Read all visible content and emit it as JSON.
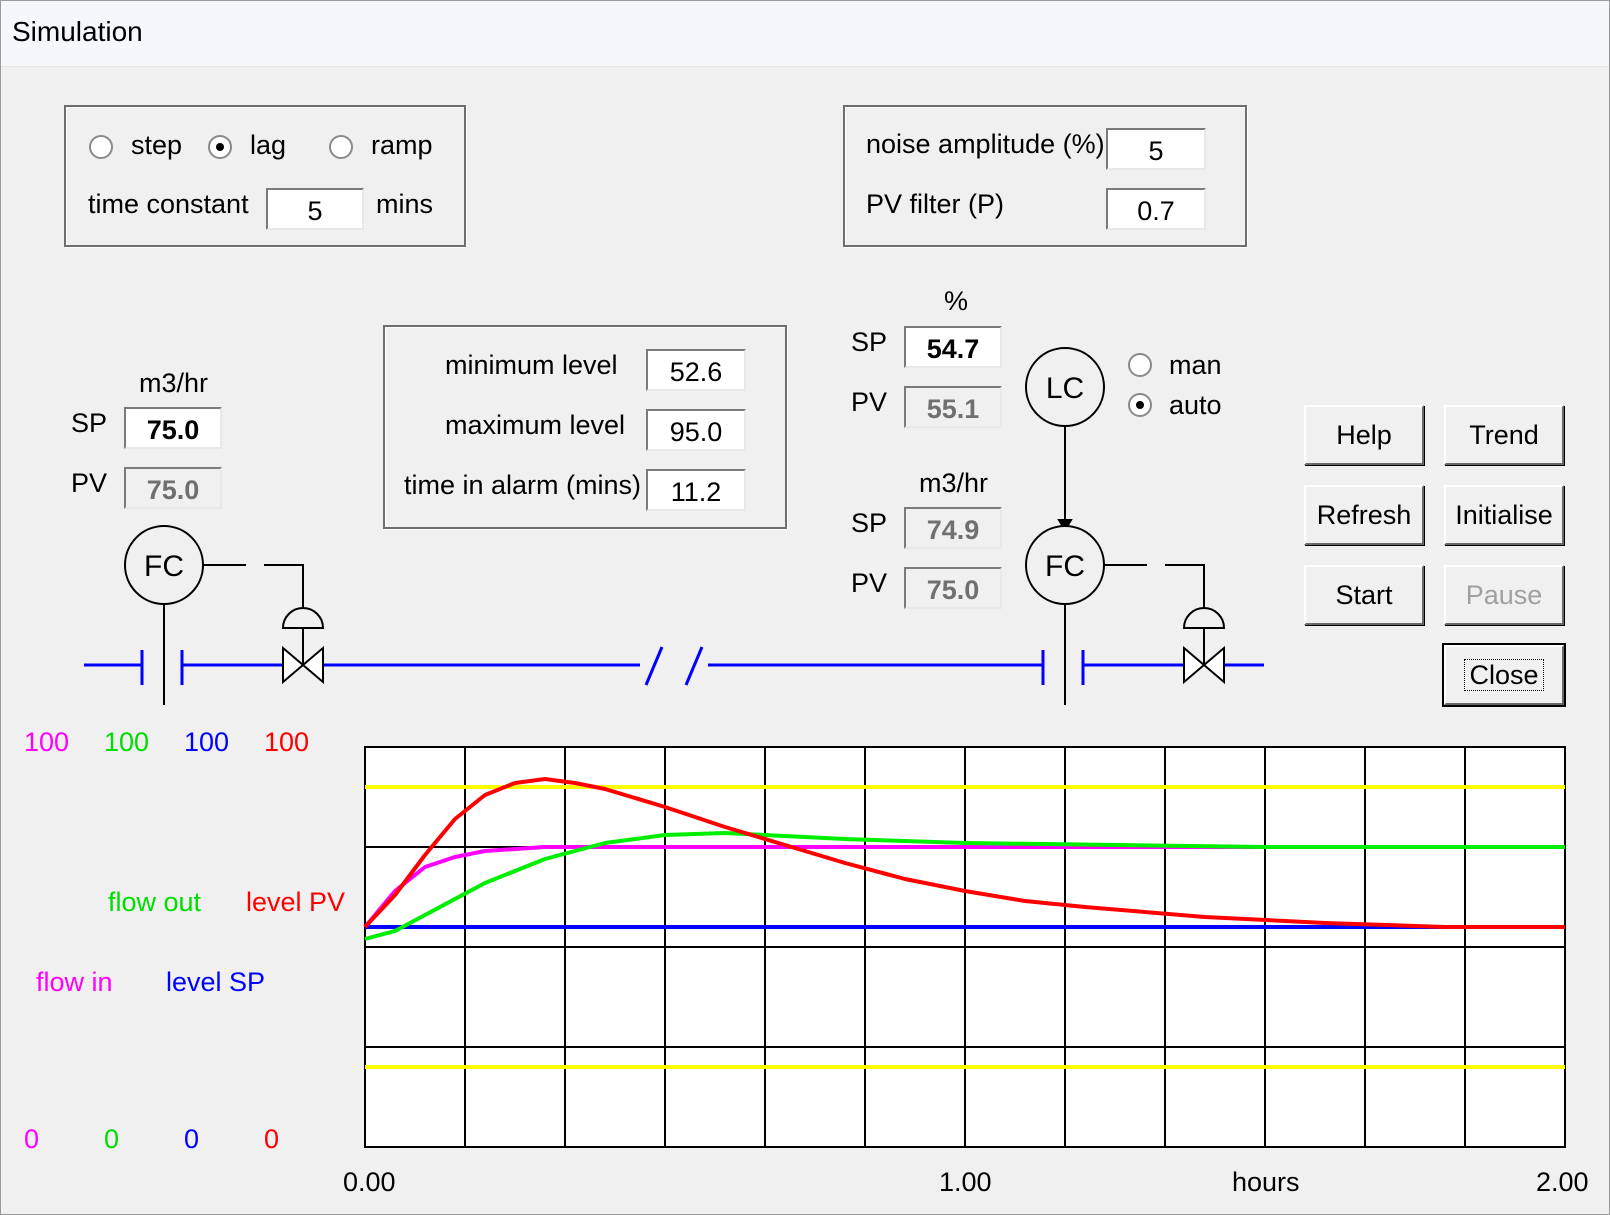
{
  "window": {
    "title": "Simulation"
  },
  "disturbance": {
    "options": [
      {
        "label": "step",
        "checked": false
      },
      {
        "label": "lag",
        "checked": true
      },
      {
        "label": "ramp",
        "checked": false
      }
    ],
    "time_constant_label": "time constant",
    "time_constant_value": "5",
    "time_constant_unit": "mins"
  },
  "noise": {
    "amplitude_label": "noise amplitude (%)",
    "amplitude_value": "5",
    "filter_label": "PV filter (P)",
    "filter_value": "0.7"
  },
  "level_stats": {
    "min_label": "minimum level",
    "min_value": "52.6",
    "max_label": "maximum level",
    "max_value": "95.0",
    "alarm_label": "time in alarm (mins)",
    "alarm_value": "11.2"
  },
  "inlet_fc": {
    "unit": "m3/hr",
    "sp_label": "SP",
    "sp_value": "75.0",
    "pv_label": "PV",
    "pv_value": "75.0",
    "tag": "FC"
  },
  "lc": {
    "unit": "%",
    "sp_label": "SP",
    "sp_value": "54.7",
    "pv_label": "PV",
    "pv_value": "55.1",
    "tag": "LC",
    "mode_options": [
      {
        "label": "man",
        "checked": false
      },
      {
        "label": "auto",
        "checked": true
      }
    ]
  },
  "outlet_fc": {
    "unit": "m3/hr",
    "sp_label": "SP",
    "sp_value": "74.9",
    "pv_label": "PV",
    "pv_value": "75.0",
    "tag": "FC"
  },
  "buttons": {
    "help": "Help",
    "trend": "Trend",
    "refresh": "Refresh",
    "initialise": "Initialise",
    "start": "Start",
    "pause": "Pause",
    "close": "Close"
  },
  "colors": {
    "flow_in": "#ff00ff",
    "flow_out": "#00ee00",
    "level_sp": "#0000ff",
    "level_pv": "#ff0000",
    "alarm_limits": "#ffff00",
    "pipe": "#0000ff"
  },
  "trend_scales": {
    "max": [
      "100",
      "100",
      "100",
      "100"
    ],
    "min": [
      "0",
      "0",
      "0",
      "0"
    ]
  },
  "chart_data": {
    "type": "line",
    "xlabel": "hours",
    "x_ticks": [
      "0.00",
      "1.00",
      "2.00"
    ],
    "xlim": [
      0,
      2
    ],
    "ylim": [
      0,
      100
    ],
    "legend": [
      "flow out",
      "level PV",
      "flow in",
      "level SP"
    ],
    "alarm_limits": [
      90,
      20
    ],
    "series": [
      {
        "name": "flow in",
        "x": [
          0,
          0.05,
          0.1,
          0.15,
          0.2,
          0.3,
          0.5,
          1.0,
          1.5,
          2.0
        ],
        "values": [
          55,
          64,
          70,
          72.5,
          74,
          75,
          75,
          75,
          75,
          75
        ]
      },
      {
        "name": "flow out",
        "x": [
          0,
          0.05,
          0.1,
          0.2,
          0.3,
          0.4,
          0.5,
          0.6,
          0.8,
          1.0,
          1.5,
          2.0
        ],
        "values": [
          52,
          54,
          58,
          66,
          72,
          76,
          78,
          78.5,
          77,
          76,
          75,
          75
        ]
      },
      {
        "name": "level SP",
        "x": [
          0,
          2.0
        ],
        "values": [
          55,
          55
        ]
      },
      {
        "name": "level PV",
        "x": [
          0,
          0.05,
          0.1,
          0.15,
          0.2,
          0.25,
          0.3,
          0.35,
          0.4,
          0.5,
          0.6,
          0.7,
          0.8,
          0.9,
          1.0,
          1.1,
          1.2,
          1.4,
          1.6,
          1.8,
          2.0
        ],
        "values": [
          55,
          63,
          73,
          82,
          88,
          91,
          92,
          91,
          89.5,
          85,
          80,
          75.5,
          71,
          67,
          64,
          61.5,
          60,
          57.5,
          56,
          55,
          55
        ]
      }
    ]
  }
}
